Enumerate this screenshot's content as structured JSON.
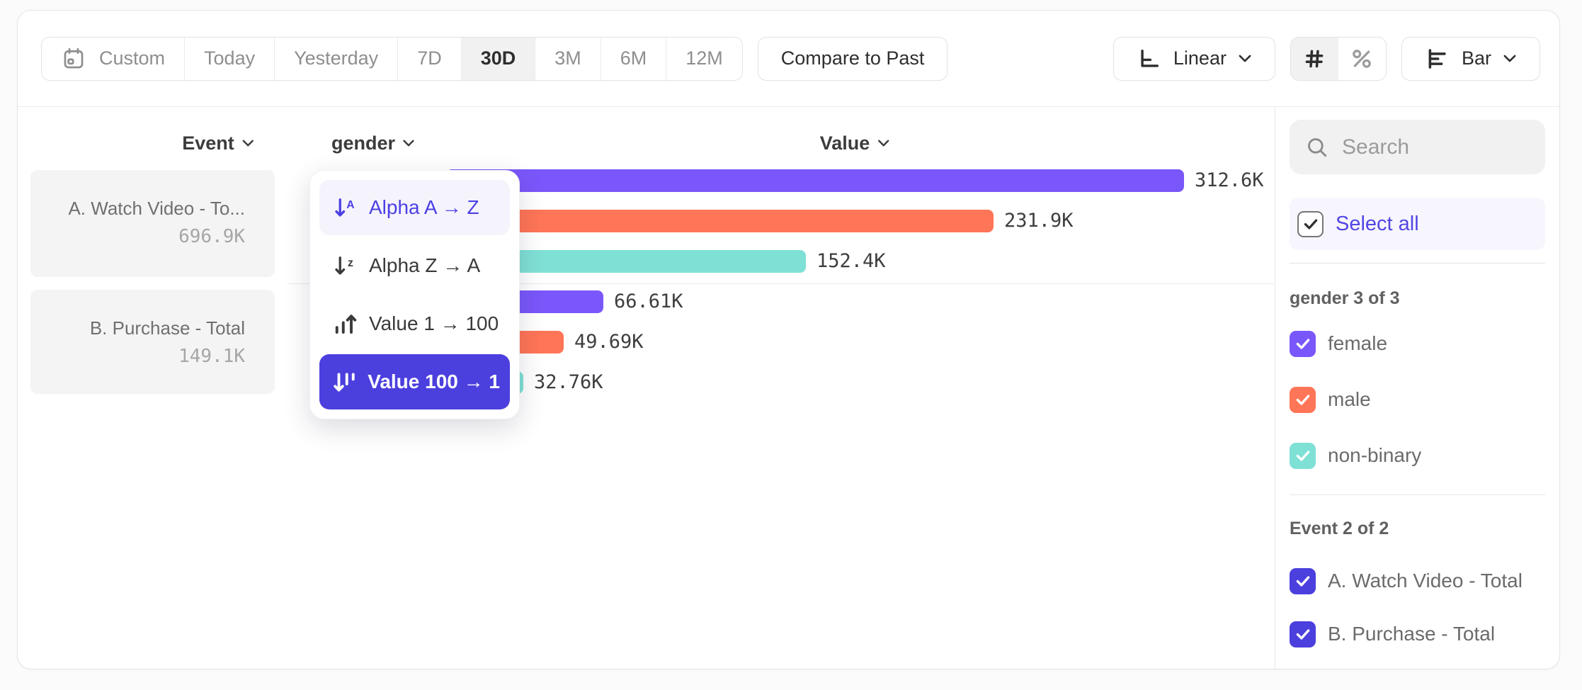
{
  "toolbar": {
    "date_ranges": [
      {
        "label": "Custom",
        "icon": "calendar-icon",
        "active": false
      },
      {
        "label": "Today",
        "active": false
      },
      {
        "label": "Yesterday",
        "active": false
      },
      {
        "label": "7D",
        "active": false
      },
      {
        "label": "30D",
        "active": true
      },
      {
        "label": "3M",
        "active": false
      },
      {
        "label": "6M",
        "active": false
      },
      {
        "label": "12M",
        "active": false
      }
    ],
    "compare_label": "Compare to Past",
    "scale_label": "Linear",
    "format_number": "#",
    "format_percent": "%",
    "format_active": "#",
    "chart_type_label": "Bar"
  },
  "columns": {
    "event": "Event",
    "breakdown": "gender",
    "value": "Value"
  },
  "event_list": [
    {
      "name": "A. Watch Video - To...",
      "total": "696.9K"
    },
    {
      "name": "B. Purchase - Total",
      "total": "149.1K"
    }
  ],
  "sort_menu": {
    "items": [
      {
        "label": "Alpha A → Z",
        "icon": "sort-alpha-asc-icon",
        "state": "hover"
      },
      {
        "label": "Alpha Z → A",
        "icon": "sort-alpha-desc-icon",
        "state": "normal"
      },
      {
        "label": "Value 1 → 100",
        "icon": "sort-value-asc-icon",
        "state": "normal"
      },
      {
        "label": "Value 100 → 1",
        "icon": "sort-value-desc-icon",
        "state": "selected"
      }
    ]
  },
  "chart_data": {
    "type": "bar",
    "orientation": "horizontal",
    "value_axis_max": 312600,
    "sort": "Value 100 → 1",
    "legend_position": "right-sidebar",
    "groups": [
      {
        "event": "A. Watch Video - Total",
        "bars": [
          {
            "category": "female",
            "value": 312600,
            "label": "312.6K",
            "color": "#7A57FA"
          },
          {
            "category": "male",
            "value": 231900,
            "label": "231.9K",
            "color": "#FF7557"
          },
          {
            "category": "non-binary",
            "value": 152400,
            "label": "152.4K",
            "color": "#7FE0D6"
          }
        ]
      },
      {
        "event": "B. Purchase - Total",
        "bars": [
          {
            "category": "female",
            "value": 66610,
            "label": "66.61K",
            "color": "#7A57FA"
          },
          {
            "category": "male",
            "value": 49690,
            "label": "49.69K",
            "color": "#FF7557"
          },
          {
            "category": "non-binary",
            "value": 32760,
            "label": "32.76K",
            "color": "#7FE0D6"
          }
        ]
      }
    ]
  },
  "sidebar": {
    "search_placeholder": "Search",
    "select_all_label": "Select all",
    "groups": [
      {
        "title": "gender 3 of 3",
        "items": [
          {
            "label": "female",
            "checked": true,
            "color": "#7A57FA"
          },
          {
            "label": "male",
            "checked": true,
            "color": "#FF7557"
          },
          {
            "label": "non-binary",
            "checked": true,
            "color": "#7FE0D6"
          }
        ]
      },
      {
        "title": "Event 2 of 2",
        "items": [
          {
            "label": "A. Watch Video - Total",
            "checked": true,
            "color": "#4B3FDE"
          },
          {
            "label": "B. Purchase - Total",
            "checked": true,
            "color": "#4B3FDE"
          }
        ]
      }
    ]
  },
  "colors": {
    "purple": "#7A57FA",
    "orange": "#FF7557",
    "teal": "#7FE0D6",
    "indigo": "#4B3FDE",
    "accent_text": "#4C3FE4"
  }
}
